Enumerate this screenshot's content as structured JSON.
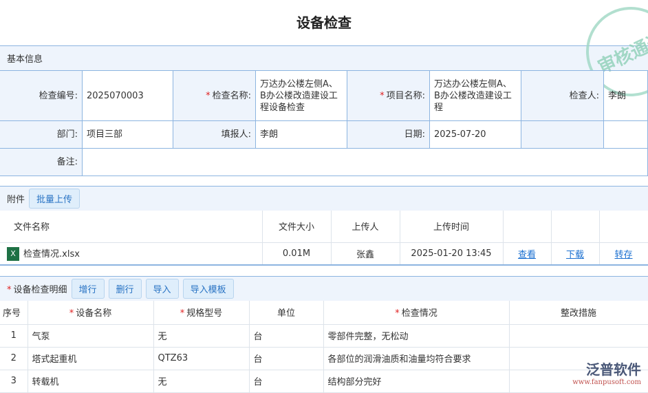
{
  "title": "设备检查",
  "basic": {
    "header": "基本信息",
    "fields": {
      "code_label": "检查编号:",
      "code": "2025070003",
      "name_label": "检查名称:",
      "name": "万达办公楼左侧A、B办公楼改造建设工程设备检查",
      "project_label": "项目名称:",
      "project": "万达办公楼左侧A、B办公楼改造建设工程",
      "inspector_label": "检查人:",
      "inspector": "李朗",
      "dept_label": "部门:",
      "dept": "项目三部",
      "reporter_label": "填报人:",
      "reporter": "李朗",
      "date_label": "日期:",
      "date": "2025-07-20",
      "remark_label": "备注:"
    }
  },
  "attachments": {
    "header": "附件",
    "upload_label": "批量上传",
    "columns": [
      "文件名称",
      "文件大小",
      "上传人",
      "上传时间"
    ],
    "rows": [
      {
        "name": "检查情况.xlsx",
        "size": "0.01M",
        "uploader": "张鑫",
        "time": "2025-01-20 13:45",
        "view": "查看",
        "download": "下载",
        "transfer": "转存"
      }
    ]
  },
  "detail": {
    "header": "设备检查明细",
    "buttons": [
      "增行",
      "删行",
      "导入",
      "导入模板"
    ],
    "columns": [
      "序号",
      "设备名称",
      "规格型号",
      "单位",
      "检查情况",
      "整改措施"
    ],
    "rows": [
      [
        "1",
        "气泵",
        "无",
        "台",
        "零部件完整，无松动",
        ""
      ],
      [
        "2",
        "塔式起重机",
        "QTZ63",
        "台",
        "各部位的润滑油质和油量均符合要求",
        ""
      ],
      [
        "3",
        "转载机",
        "无",
        "台",
        "结构部分完好",
        ""
      ]
    ]
  },
  "stamp": "审核通过",
  "logo": {
    "name": "泛普软件",
    "url": "www.fanpusoft.com"
  },
  "colors": {
    "accent": "#2a74c4",
    "border": "#8cb4e0",
    "required": "#e02020"
  }
}
